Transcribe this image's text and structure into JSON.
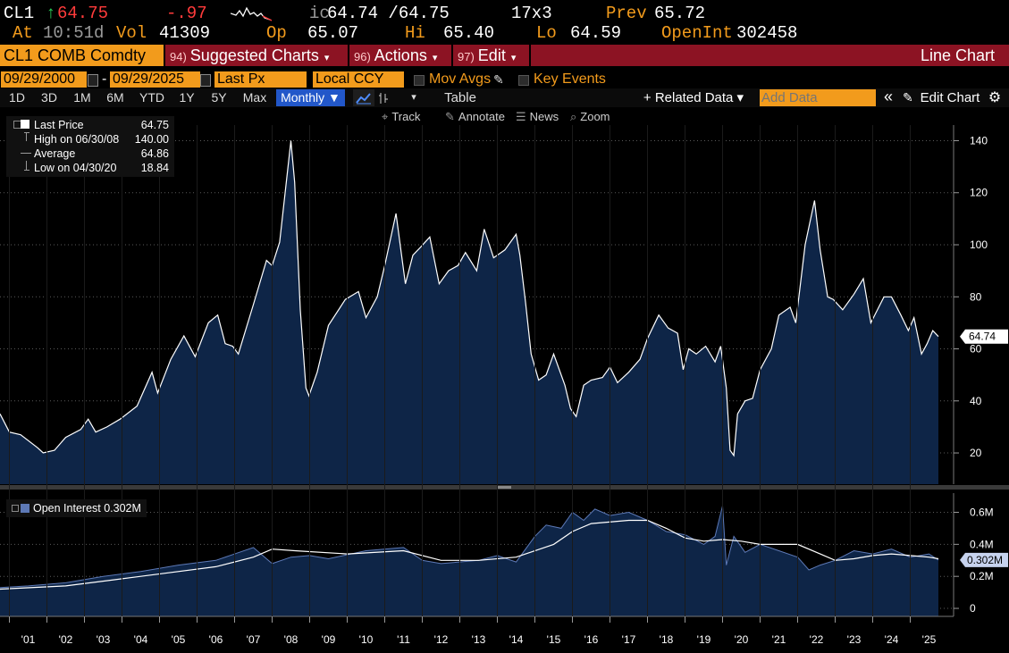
{
  "header": {
    "ticker": "CL1",
    "arrow": "↑",
    "last": "64.75",
    "change": "-.97",
    "ic_prefix": "ic",
    "bid_ask": "64.74 /64.75",
    "size": "17x3",
    "prev_label": "Prev",
    "prev_value": "65.72",
    "at_label": "At",
    "time": "10:51d",
    "vol_label": "Vol",
    "vol_value": "41309",
    "op_label": "Op",
    "op_value": "65.07",
    "hi_label": "Hi",
    "hi_value": "65.40",
    "lo_label": "Lo",
    "lo_value": "64.59",
    "oi_label": "OpenInt",
    "oi_value": "302458"
  },
  "menubar": {
    "security": "CL1 COMB Comdty",
    "suggested_num": "94)",
    "suggested_label": "Suggested Charts",
    "actions_num": "96)",
    "actions_label": "Actions",
    "edit_num": "97)",
    "edit_label": "Edit",
    "chart_type": "Line Chart"
  },
  "controls": {
    "start_date": "09/29/2000",
    "dash": "-",
    "end_date": "09/29/2025",
    "field": "Last Px",
    "currency": "Local CCY",
    "mov_avgs": "Mov Avgs",
    "key_events": "Key Events"
  },
  "toolbar": {
    "ranges": [
      "1D",
      "3D",
      "1M",
      "6M",
      "YTD",
      "1Y",
      "5Y",
      "Max"
    ],
    "period": "Monthly ▼",
    "table": "Table",
    "related": "+ Related Data ▾",
    "add_data_placeholder": "Add Data",
    "collapse": "«",
    "edit_chart": "Edit Chart"
  },
  "subtools": {
    "track": "Track",
    "annotate": "Annotate",
    "news": "News",
    "zoom": "Zoom"
  },
  "legend": {
    "last_label": "Last Price",
    "last_value": "64.75",
    "high_label": "High on 06/30/08",
    "high_value": "140.00",
    "avg_label": "Average",
    "avg_value": "64.86",
    "low_label": "Low on 04/30/20",
    "low_value": "18.84"
  },
  "oi_legend": {
    "label": "Open Interest 0.302M"
  },
  "colors": {
    "area_fill": "#0e2547",
    "line": "#ffffff",
    "oi_fill": "#0e2547",
    "oi_line": "#5d79b6",
    "orange": "#f29b1c",
    "menu_red": "#8c1323"
  },
  "chart_data": [
    {
      "type": "area",
      "title": "CL1 COMB Comdty — Last Price (Monthly)",
      "xlabel": "",
      "ylabel": "",
      "ylim": [
        8,
        146
      ],
      "yticks": [
        20,
        40,
        60,
        80,
        100,
        120,
        140
      ],
      "x_range": [
        2000.75,
        2025.75
      ],
      "x_ticks": [
        "'01",
        "'02",
        "'03",
        "'04",
        "'05",
        "'06",
        "'07",
        "'08",
        "'09",
        "'10",
        "'11",
        "'12",
        "'13",
        "'14",
        "'15",
        "'16",
        "'17",
        "'18",
        "'19",
        "'20",
        "'21",
        "'22",
        "'23",
        "'24",
        "'25"
      ],
      "current_label": "64.74",
      "series": [
        {
          "name": "Last Price",
          "x": [
            2000.75,
            2001.0,
            2001.3,
            2001.75,
            2001.9,
            2002.2,
            2002.5,
            2002.9,
            2003.1,
            2003.3,
            2003.6,
            2003.95,
            2004.4,
            2004.8,
            2004.95,
            2005.3,
            2005.65,
            2005.95,
            2006.3,
            2006.55,
            2006.75,
            2006.95,
            2007.1,
            2007.5,
            2007.85,
            2008.0,
            2008.2,
            2008.5,
            2008.6,
            2008.75,
            2008.9,
            2008.98,
            2009.2,
            2009.5,
            2009.95,
            2010.3,
            2010.5,
            2010.8,
            2011.0,
            2011.3,
            2011.55,
            2011.75,
            2011.95,
            2012.2,
            2012.45,
            2012.7,
            2012.95,
            2013.15,
            2013.45,
            2013.65,
            2013.9,
            2014.2,
            2014.5,
            2014.6,
            2014.75,
            2014.9,
            2015.1,
            2015.3,
            2015.5,
            2015.8,
            2015.95,
            2016.1,
            2016.3,
            2016.5,
            2016.8,
            2017.0,
            2017.2,
            2017.5,
            2017.8,
            2018.0,
            2018.3,
            2018.55,
            2018.8,
            2018.95,
            2019.1,
            2019.3,
            2019.55,
            2019.8,
            2019.95,
            2020.1,
            2020.2,
            2020.3,
            2020.4,
            2020.6,
            2020.8,
            2021.0,
            2021.3,
            2021.5,
            2021.8,
            2021.95,
            2022.2,
            2022.45,
            2022.6,
            2022.8,
            2022.95,
            2023.2,
            2023.5,
            2023.75,
            2023.95,
            2024.3,
            2024.5,
            2024.75,
            2024.95,
            2025.1,
            2025.3,
            2025.45,
            2025.6,
            2025.75
          ],
          "values": [
            35,
            28,
            27,
            22,
            20,
            21,
            26,
            29,
            33,
            28,
            30,
            33,
            38,
            51,
            43,
            56,
            65,
            57,
            70,
            73,
            62,
            61,
            58,
            77,
            94,
            92,
            101,
            140,
            124,
            75,
            45,
            42,
            51,
            69,
            79,
            82,
            72,
            80,
            92,
            112,
            85,
            96,
            99,
            103,
            85,
            90,
            92,
            97,
            90,
            106,
            95,
            98,
            104,
            96,
            78,
            58,
            48,
            50,
            58,
            46,
            37,
            34,
            46,
            48,
            49,
            53,
            47,
            51,
            56,
            64,
            73,
            68,
            66,
            52,
            60,
            58,
            61,
            55,
            61,
            45,
            21,
            19,
            35,
            40,
            41,
            52,
            60,
            73,
            76,
            70,
            100,
            117,
            98,
            80,
            79,
            75,
            81,
            87,
            70,
            80,
            80,
            73,
            67,
            72,
            58,
            62,
            67,
            64.74
          ]
        }
      ]
    },
    {
      "type": "area",
      "title": "Open Interest",
      "ylim": [
        -0.05,
        0.72
      ],
      "yticks": [
        0,
        0.2,
        0.4,
        0.6
      ],
      "ytick_labels": [
        "0",
        "0.2M",
        "0.4M",
        "0.6M"
      ],
      "current_label": "0.302M",
      "series": [
        {
          "name": "Open Interest",
          "x": [
            2000.75,
            2001.5,
            2002.5,
            2003.5,
            2004.5,
            2005.5,
            2006.5,
            2007.5,
            2008.0,
            2008.5,
            2009.0,
            2009.5,
            2010.5,
            2011.5,
            2012.0,
            2012.5,
            2013.5,
            2014.0,
            2014.5,
            2015.0,
            2015.3,
            2015.7,
            2016.0,
            2016.3,
            2016.6,
            2017.0,
            2017.5,
            2018.0,
            2018.5,
            2019.0,
            2019.5,
            2019.8,
            2020.0,
            2020.1,
            2020.3,
            2020.6,
            2021.0,
            2021.5,
            2022.0,
            2022.3,
            2022.6,
            2023.0,
            2023.5,
            2024.0,
            2024.5,
            2025.0,
            2025.5,
            2025.75
          ],
          "values": [
            0.13,
            0.14,
            0.16,
            0.2,
            0.23,
            0.27,
            0.3,
            0.38,
            0.28,
            0.32,
            0.33,
            0.31,
            0.36,
            0.38,
            0.3,
            0.28,
            0.3,
            0.33,
            0.29,
            0.45,
            0.52,
            0.5,
            0.6,
            0.55,
            0.62,
            0.58,
            0.6,
            0.55,
            0.48,
            0.46,
            0.4,
            0.45,
            0.64,
            0.27,
            0.45,
            0.35,
            0.4,
            0.36,
            0.32,
            0.24,
            0.27,
            0.3,
            0.36,
            0.34,
            0.37,
            0.32,
            0.34,
            0.302
          ]
        },
        {
          "name": "Moving Average",
          "x": [
            2000.75,
            2002.5,
            2004.5,
            2006.5,
            2007.5,
            2008.0,
            2008.6,
            2010.0,
            2011.5,
            2012.5,
            2013.5,
            2014.5,
            2015.5,
            2016.0,
            2016.5,
            2017.5,
            2018.0,
            2018.5,
            2019.0,
            2019.5,
            2020.0,
            2020.5,
            2021.0,
            2022.0,
            2022.6,
            2023.0,
            2023.5,
            2024.0,
            2024.5,
            2025.0,
            2025.5,
            2025.75
          ],
          "values": [
            0.12,
            0.14,
            0.2,
            0.26,
            0.32,
            0.37,
            0.36,
            0.34,
            0.36,
            0.3,
            0.3,
            0.32,
            0.4,
            0.48,
            0.53,
            0.55,
            0.55,
            0.5,
            0.44,
            0.42,
            0.43,
            0.42,
            0.4,
            0.4,
            0.34,
            0.3,
            0.31,
            0.33,
            0.34,
            0.33,
            0.32,
            0.31
          ]
        }
      ]
    }
  ]
}
